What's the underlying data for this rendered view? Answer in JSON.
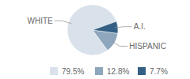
{
  "chart_data": {
    "type": "pie",
    "categories": [
      "WHITE",
      "HISPANIC",
      "A.I."
    ],
    "values": [
      79.5,
      12.8,
      7.7
    ],
    "value_labels": [
      "79.5%",
      "12.8%",
      "7.7%"
    ],
    "colors": [
      "#d9e1ea",
      "#8ea7bd",
      "#345f84"
    ],
    "legend": "bottom"
  }
}
